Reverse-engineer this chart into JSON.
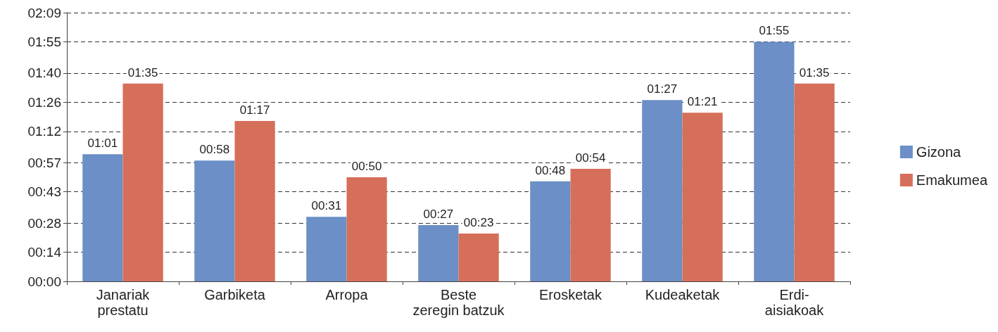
{
  "chart_data": {
    "type": "bar",
    "categories": [
      "Janariak prestatu",
      "Garbiketa",
      "Arropa",
      "Beste zeregin batzuk",
      "Erosketak",
      "Kudeaketak",
      "Erdi-aisiakoak"
    ],
    "series": [
      {
        "name": "Gizona",
        "color": "#6b8fc6",
        "values": [
          61,
          58,
          31,
          27,
          48,
          87,
          115
        ],
        "value_labels": [
          "01:01",
          "00:58",
          "00:31",
          "00:27",
          "00:48",
          "01:27",
          "01:55"
        ]
      },
      {
        "name": "Emakumea",
        "color": "#d66f5a",
        "values": [
          95,
          77,
          50,
          23,
          54,
          81,
          95
        ],
        "value_labels": [
          "01:35",
          "01:17",
          "00:50",
          "00:23",
          "00:54",
          "01:21",
          "01:35"
        ]
      }
    ],
    "ylim": [
      0,
      129
    ],
    "yticks": [
      {
        "value": 0,
        "label": "00:00"
      },
      {
        "value": 14,
        "label": "00:14"
      },
      {
        "value": 28,
        "label": "00:28"
      },
      {
        "value": 43,
        "label": "00:43"
      },
      {
        "value": 57,
        "label": "00:57"
      },
      {
        "value": 72,
        "label": "01:12"
      },
      {
        "value": 86,
        "label": "01:26"
      },
      {
        "value": 100,
        "label": "01:40"
      },
      {
        "value": 115,
        "label": "01:55"
      },
      {
        "value": 129,
        "label": "02:09"
      }
    ],
    "grid": "y",
    "legend": "right"
  }
}
